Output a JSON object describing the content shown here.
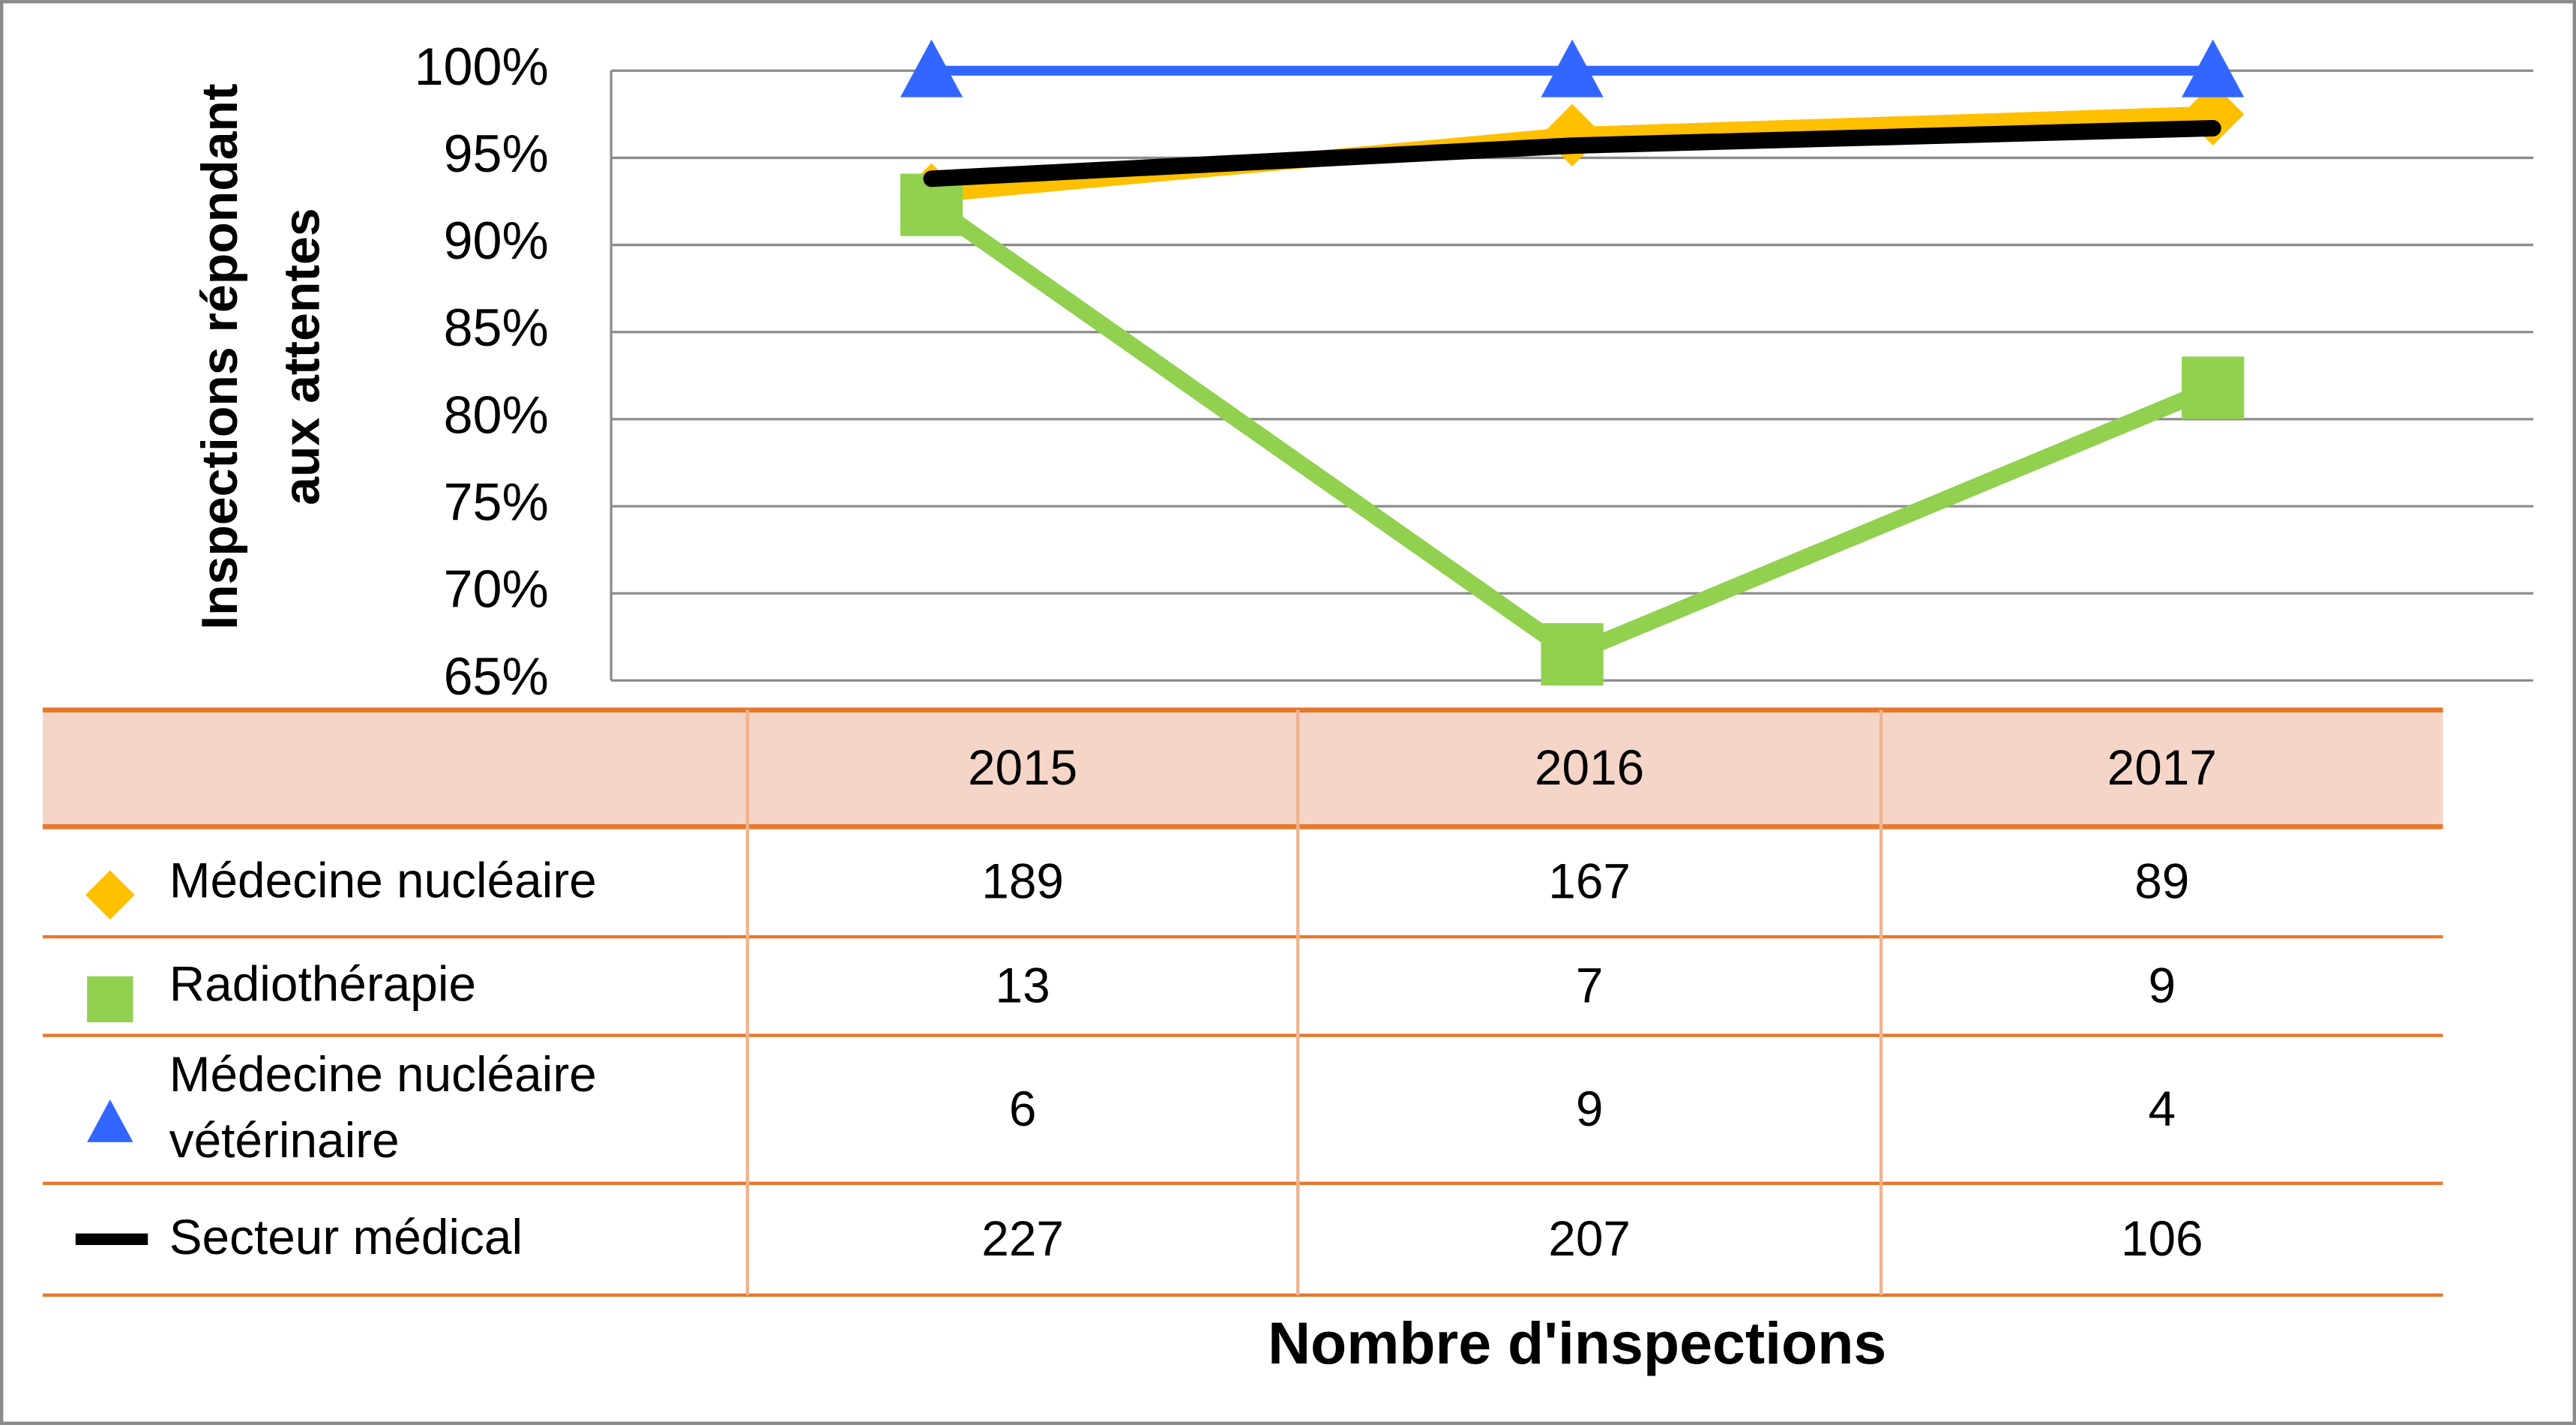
{
  "chart_data": {
    "type": "line",
    "ylabel": [
      "Inspections répondant",
      "aux attentes"
    ],
    "xlabel": "Nombre d'inspections",
    "categories": [
      "2015",
      "2016",
      "2017"
    ],
    "ylim": [
      65,
      100
    ],
    "yticks": [
      {
        "value": 65,
        "label": "65%"
      },
      {
        "value": 70,
        "label": "70%"
      },
      {
        "value": 75,
        "label": "75%"
      },
      {
        "value": 80,
        "label": "80%"
      },
      {
        "value": 85,
        "label": "85%"
      },
      {
        "value": 90,
        "label": "90%"
      },
      {
        "value": 95,
        "label": "95%"
      },
      {
        "value": 100,
        "label": "100%"
      }
    ],
    "grid": true,
    "series": [
      {
        "name": "Médecine nucléaire",
        "color": "#FFC000",
        "marker": "diamond",
        "values": [
          92.9,
          96.3,
          97.5
        ],
        "inspections": [
          189,
          167,
          89
        ]
      },
      {
        "name": "Radiothérapie",
        "color": "#92D050",
        "marker": "square",
        "values": [
          92.3,
          66.5,
          81.8
        ],
        "inspections": [
          13,
          7,
          9
        ]
      },
      {
        "name": "Médecine nucléaire vétérinaire",
        "color": "#3366FF",
        "marker": "triangle",
        "values": [
          100,
          100,
          100
        ],
        "inspections": [
          6,
          9,
          4
        ]
      },
      {
        "name": "Secteur médical",
        "color": "#000000",
        "marker": "none",
        "values": [
          93.8,
          95.7,
          96.7
        ],
        "inspections": [
          227,
          207,
          106
        ]
      }
    ]
  }
}
